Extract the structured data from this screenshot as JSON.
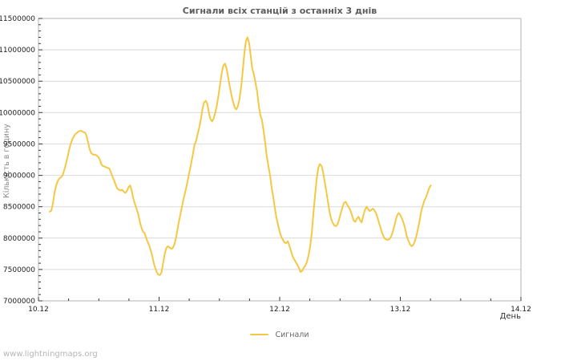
{
  "page": {
    "watermark": "www.lightningmaps.org"
  },
  "colors": {
    "line": "#F5C843",
    "grid": "#d9d9d9",
    "border": "#b3b3b3",
    "tick": "#3a3a3a",
    "tick_label": "#1c1c1c"
  },
  "chart_data": {
    "type": "line",
    "title": "Сигнали всіх станцій з останніх 3 днів",
    "xlabel": "День",
    "ylabel": "Кількість в годину",
    "grid": "horizontal",
    "legend_position": "bottom-center",
    "legend": [
      {
        "label": "Сигнали",
        "color": "#F5C843"
      }
    ],
    "x_axis": {
      "ticks": [
        "10.12",
        "11.12",
        "12.12",
        "13.12",
        "14.12"
      ],
      "span_days": 4,
      "minor_step_days": 0.25
    },
    "y_axis": {
      "min": 7000000,
      "max": 11500000,
      "major_step": 500000,
      "minor_step": 100000,
      "ticks": [
        "7000000",
        "7500000",
        "8000000",
        "8500000",
        "9000000",
        "9500000",
        "10000000",
        "10500000",
        "11000000",
        "11500000"
      ]
    },
    "series": [
      {
        "name": "Сигнали",
        "color": "#F5C843",
        "x_unit": "days since 10.12 00:00",
        "y_unit": "signals per hour",
        "points": [
          [
            0.093,
            8420000
          ],
          [
            0.107,
            8440000
          ],
          [
            0.12,
            8560000
          ],
          [
            0.133,
            8720000
          ],
          [
            0.147,
            8840000
          ],
          [
            0.16,
            8910000
          ],
          [
            0.173,
            8950000
          ],
          [
            0.187,
            8970000
          ],
          [
            0.2,
            9000000
          ],
          [
            0.213,
            9080000
          ],
          [
            0.227,
            9180000
          ],
          [
            0.24,
            9280000
          ],
          [
            0.253,
            9400000
          ],
          [
            0.267,
            9500000
          ],
          [
            0.28,
            9570000
          ],
          [
            0.293,
            9620000
          ],
          [
            0.307,
            9660000
          ],
          [
            0.32,
            9680000
          ],
          [
            0.333,
            9700000
          ],
          [
            0.353,
            9710000
          ],
          [
            0.373,
            9690000
          ],
          [
            0.387,
            9680000
          ],
          [
            0.4,
            9620000
          ],
          [
            0.413,
            9510000
          ],
          [
            0.427,
            9400000
          ],
          [
            0.44,
            9350000
          ],
          [
            0.453,
            9330000
          ],
          [
            0.467,
            9330000
          ],
          [
            0.48,
            9320000
          ],
          [
            0.493,
            9300000
          ],
          [
            0.507,
            9260000
          ],
          [
            0.52,
            9180000
          ],
          [
            0.533,
            9150000
          ],
          [
            0.547,
            9140000
          ],
          [
            0.56,
            9130000
          ],
          [
            0.573,
            9120000
          ],
          [
            0.587,
            9110000
          ],
          [
            0.6,
            9050000
          ],
          [
            0.613,
            8980000
          ],
          [
            0.627,
            8920000
          ],
          [
            0.64,
            8850000
          ],
          [
            0.653,
            8790000
          ],
          [
            0.667,
            8770000
          ],
          [
            0.68,
            8760000
          ],
          [
            0.693,
            8770000
          ],
          [
            0.707,
            8740000
          ],
          [
            0.72,
            8720000
          ],
          [
            0.733,
            8750000
          ],
          [
            0.747,
            8810000
          ],
          [
            0.76,
            8840000
          ],
          [
            0.773,
            8760000
          ],
          [
            0.787,
            8630000
          ],
          [
            0.8,
            8540000
          ],
          [
            0.813,
            8470000
          ],
          [
            0.827,
            8380000
          ],
          [
            0.84,
            8270000
          ],
          [
            0.853,
            8170000
          ],
          [
            0.867,
            8100000
          ],
          [
            0.88,
            8080000
          ],
          [
            0.9,
            7960000
          ],
          [
            0.92,
            7870000
          ],
          [
            0.94,
            7740000
          ],
          [
            0.96,
            7570000
          ],
          [
            0.98,
            7460000
          ],
          [
            0.993,
            7420000
          ],
          [
            1.007,
            7410000
          ],
          [
            1.02,
            7450000
          ],
          [
            1.033,
            7600000
          ],
          [
            1.047,
            7750000
          ],
          [
            1.06,
            7840000
          ],
          [
            1.073,
            7870000
          ],
          [
            1.087,
            7850000
          ],
          [
            1.1,
            7830000
          ],
          [
            1.113,
            7840000
          ],
          [
            1.127,
            7900000
          ],
          [
            1.14,
            8000000
          ],
          [
            1.16,
            8220000
          ],
          [
            1.18,
            8410000
          ],
          [
            1.2,
            8600000
          ],
          [
            1.227,
            8820000
          ],
          [
            1.247,
            9010000
          ],
          [
            1.267,
            9200000
          ],
          [
            1.28,
            9330000
          ],
          [
            1.293,
            9480000
          ],
          [
            1.307,
            9550000
          ],
          [
            1.32,
            9660000
          ],
          [
            1.333,
            9760000
          ],
          [
            1.347,
            9900000
          ],
          [
            1.36,
            10060000
          ],
          [
            1.373,
            10160000
          ],
          [
            1.387,
            10190000
          ],
          [
            1.4,
            10140000
          ],
          [
            1.413,
            9990000
          ],
          [
            1.427,
            9890000
          ],
          [
            1.44,
            9860000
          ],
          [
            1.453,
            9910000
          ],
          [
            1.467,
            10010000
          ],
          [
            1.48,
            10120000
          ],
          [
            1.493,
            10280000
          ],
          [
            1.507,
            10470000
          ],
          [
            1.52,
            10640000
          ],
          [
            1.533,
            10750000
          ],
          [
            1.547,
            10780000
          ],
          [
            1.56,
            10700000
          ],
          [
            1.573,
            10560000
          ],
          [
            1.587,
            10410000
          ],
          [
            1.6,
            10280000
          ],
          [
            1.613,
            10170000
          ],
          [
            1.627,
            10080000
          ],
          [
            1.64,
            10050000
          ],
          [
            1.653,
            10100000
          ],
          [
            1.667,
            10220000
          ],
          [
            1.68,
            10400000
          ],
          [
            1.693,
            10650000
          ],
          [
            1.707,
            10950000
          ],
          [
            1.72,
            11140000
          ],
          [
            1.733,
            11200000
          ],
          [
            1.747,
            11100000
          ],
          [
            1.76,
            10900000
          ],
          [
            1.773,
            10700000
          ],
          [
            1.787,
            10600000
          ],
          [
            1.8,
            10470000
          ],
          [
            1.813,
            10330000
          ],
          [
            1.827,
            10100000
          ],
          [
            1.84,
            9960000
          ],
          [
            1.853,
            9880000
          ],
          [
            1.867,
            9700000
          ],
          [
            1.88,
            9520000
          ],
          [
            1.893,
            9300000
          ],
          [
            1.907,
            9140000
          ],
          [
            1.92,
            9000000
          ],
          [
            1.933,
            8810000
          ],
          [
            1.947,
            8650000
          ],
          [
            1.96,
            8470000
          ],
          [
            1.973,
            8330000
          ],
          [
            1.987,
            8210000
          ],
          [
            2.0,
            8100000
          ],
          [
            2.013,
            8020000
          ],
          [
            2.027,
            7970000
          ],
          [
            2.04,
            7930000
          ],
          [
            2.053,
            7920000
          ],
          [
            2.067,
            7950000
          ],
          [
            2.08,
            7880000
          ],
          [
            2.093,
            7800000
          ],
          [
            2.107,
            7710000
          ],
          [
            2.12,
            7660000
          ],
          [
            2.133,
            7620000
          ],
          [
            2.147,
            7570000
          ],
          [
            2.16,
            7520000
          ],
          [
            2.173,
            7460000
          ],
          [
            2.187,
            7480000
          ],
          [
            2.2,
            7530000
          ],
          [
            2.213,
            7560000
          ],
          [
            2.227,
            7630000
          ],
          [
            2.24,
            7730000
          ],
          [
            2.253,
            7880000
          ],
          [
            2.267,
            8100000
          ],
          [
            2.28,
            8400000
          ],
          [
            2.293,
            8680000
          ],
          [
            2.307,
            8950000
          ],
          [
            2.32,
            9120000
          ],
          [
            2.333,
            9180000
          ],
          [
            2.347,
            9150000
          ],
          [
            2.36,
            9050000
          ],
          [
            2.373,
            8900000
          ],
          [
            2.387,
            8740000
          ],
          [
            2.4,
            8580000
          ],
          [
            2.413,
            8420000
          ],
          [
            2.427,
            8300000
          ],
          [
            2.44,
            8240000
          ],
          [
            2.453,
            8200000
          ],
          [
            2.467,
            8190000
          ],
          [
            2.48,
            8220000
          ],
          [
            2.493,
            8300000
          ],
          [
            2.507,
            8400000
          ],
          [
            2.52,
            8490000
          ],
          [
            2.533,
            8560000
          ],
          [
            2.547,
            8580000
          ],
          [
            2.56,
            8530000
          ],
          [
            2.573,
            8490000
          ],
          [
            2.587,
            8440000
          ],
          [
            2.6,
            8360000
          ],
          [
            2.613,
            8280000
          ],
          [
            2.627,
            8260000
          ],
          [
            2.64,
            8310000
          ],
          [
            2.653,
            8340000
          ],
          [
            2.667,
            8280000
          ],
          [
            2.68,
            8250000
          ],
          [
            2.693,
            8360000
          ],
          [
            2.707,
            8450000
          ],
          [
            2.72,
            8500000
          ],
          [
            2.733,
            8460000
          ],
          [
            2.747,
            8430000
          ],
          [
            2.76,
            8450000
          ],
          [
            2.773,
            8470000
          ],
          [
            2.787,
            8440000
          ],
          [
            2.8,
            8390000
          ],
          [
            2.813,
            8310000
          ],
          [
            2.827,
            8220000
          ],
          [
            2.84,
            8140000
          ],
          [
            2.853,
            8060000
          ],
          [
            2.867,
            8000000
          ],
          [
            2.88,
            7980000
          ],
          [
            2.893,
            7970000
          ],
          [
            2.907,
            7980000
          ],
          [
            2.92,
            8010000
          ],
          [
            2.933,
            8070000
          ],
          [
            2.947,
            8170000
          ],
          [
            2.96,
            8270000
          ],
          [
            2.973,
            8360000
          ],
          [
            2.987,
            8400000
          ],
          [
            3.0,
            8370000
          ],
          [
            3.013,
            8310000
          ],
          [
            3.027,
            8240000
          ],
          [
            3.04,
            8150000
          ],
          [
            3.053,
            8030000
          ],
          [
            3.067,
            7960000
          ],
          [
            3.08,
            7900000
          ],
          [
            3.093,
            7870000
          ],
          [
            3.107,
            7890000
          ],
          [
            3.12,
            7950000
          ],
          [
            3.133,
            8030000
          ],
          [
            3.147,
            8150000
          ],
          [
            3.16,
            8280000
          ],
          [
            3.173,
            8420000
          ],
          [
            3.187,
            8520000
          ],
          [
            3.2,
            8600000
          ],
          [
            3.213,
            8650000
          ],
          [
            3.227,
            8730000
          ],
          [
            3.24,
            8800000
          ],
          [
            3.253,
            8840000
          ]
        ]
      }
    ]
  }
}
